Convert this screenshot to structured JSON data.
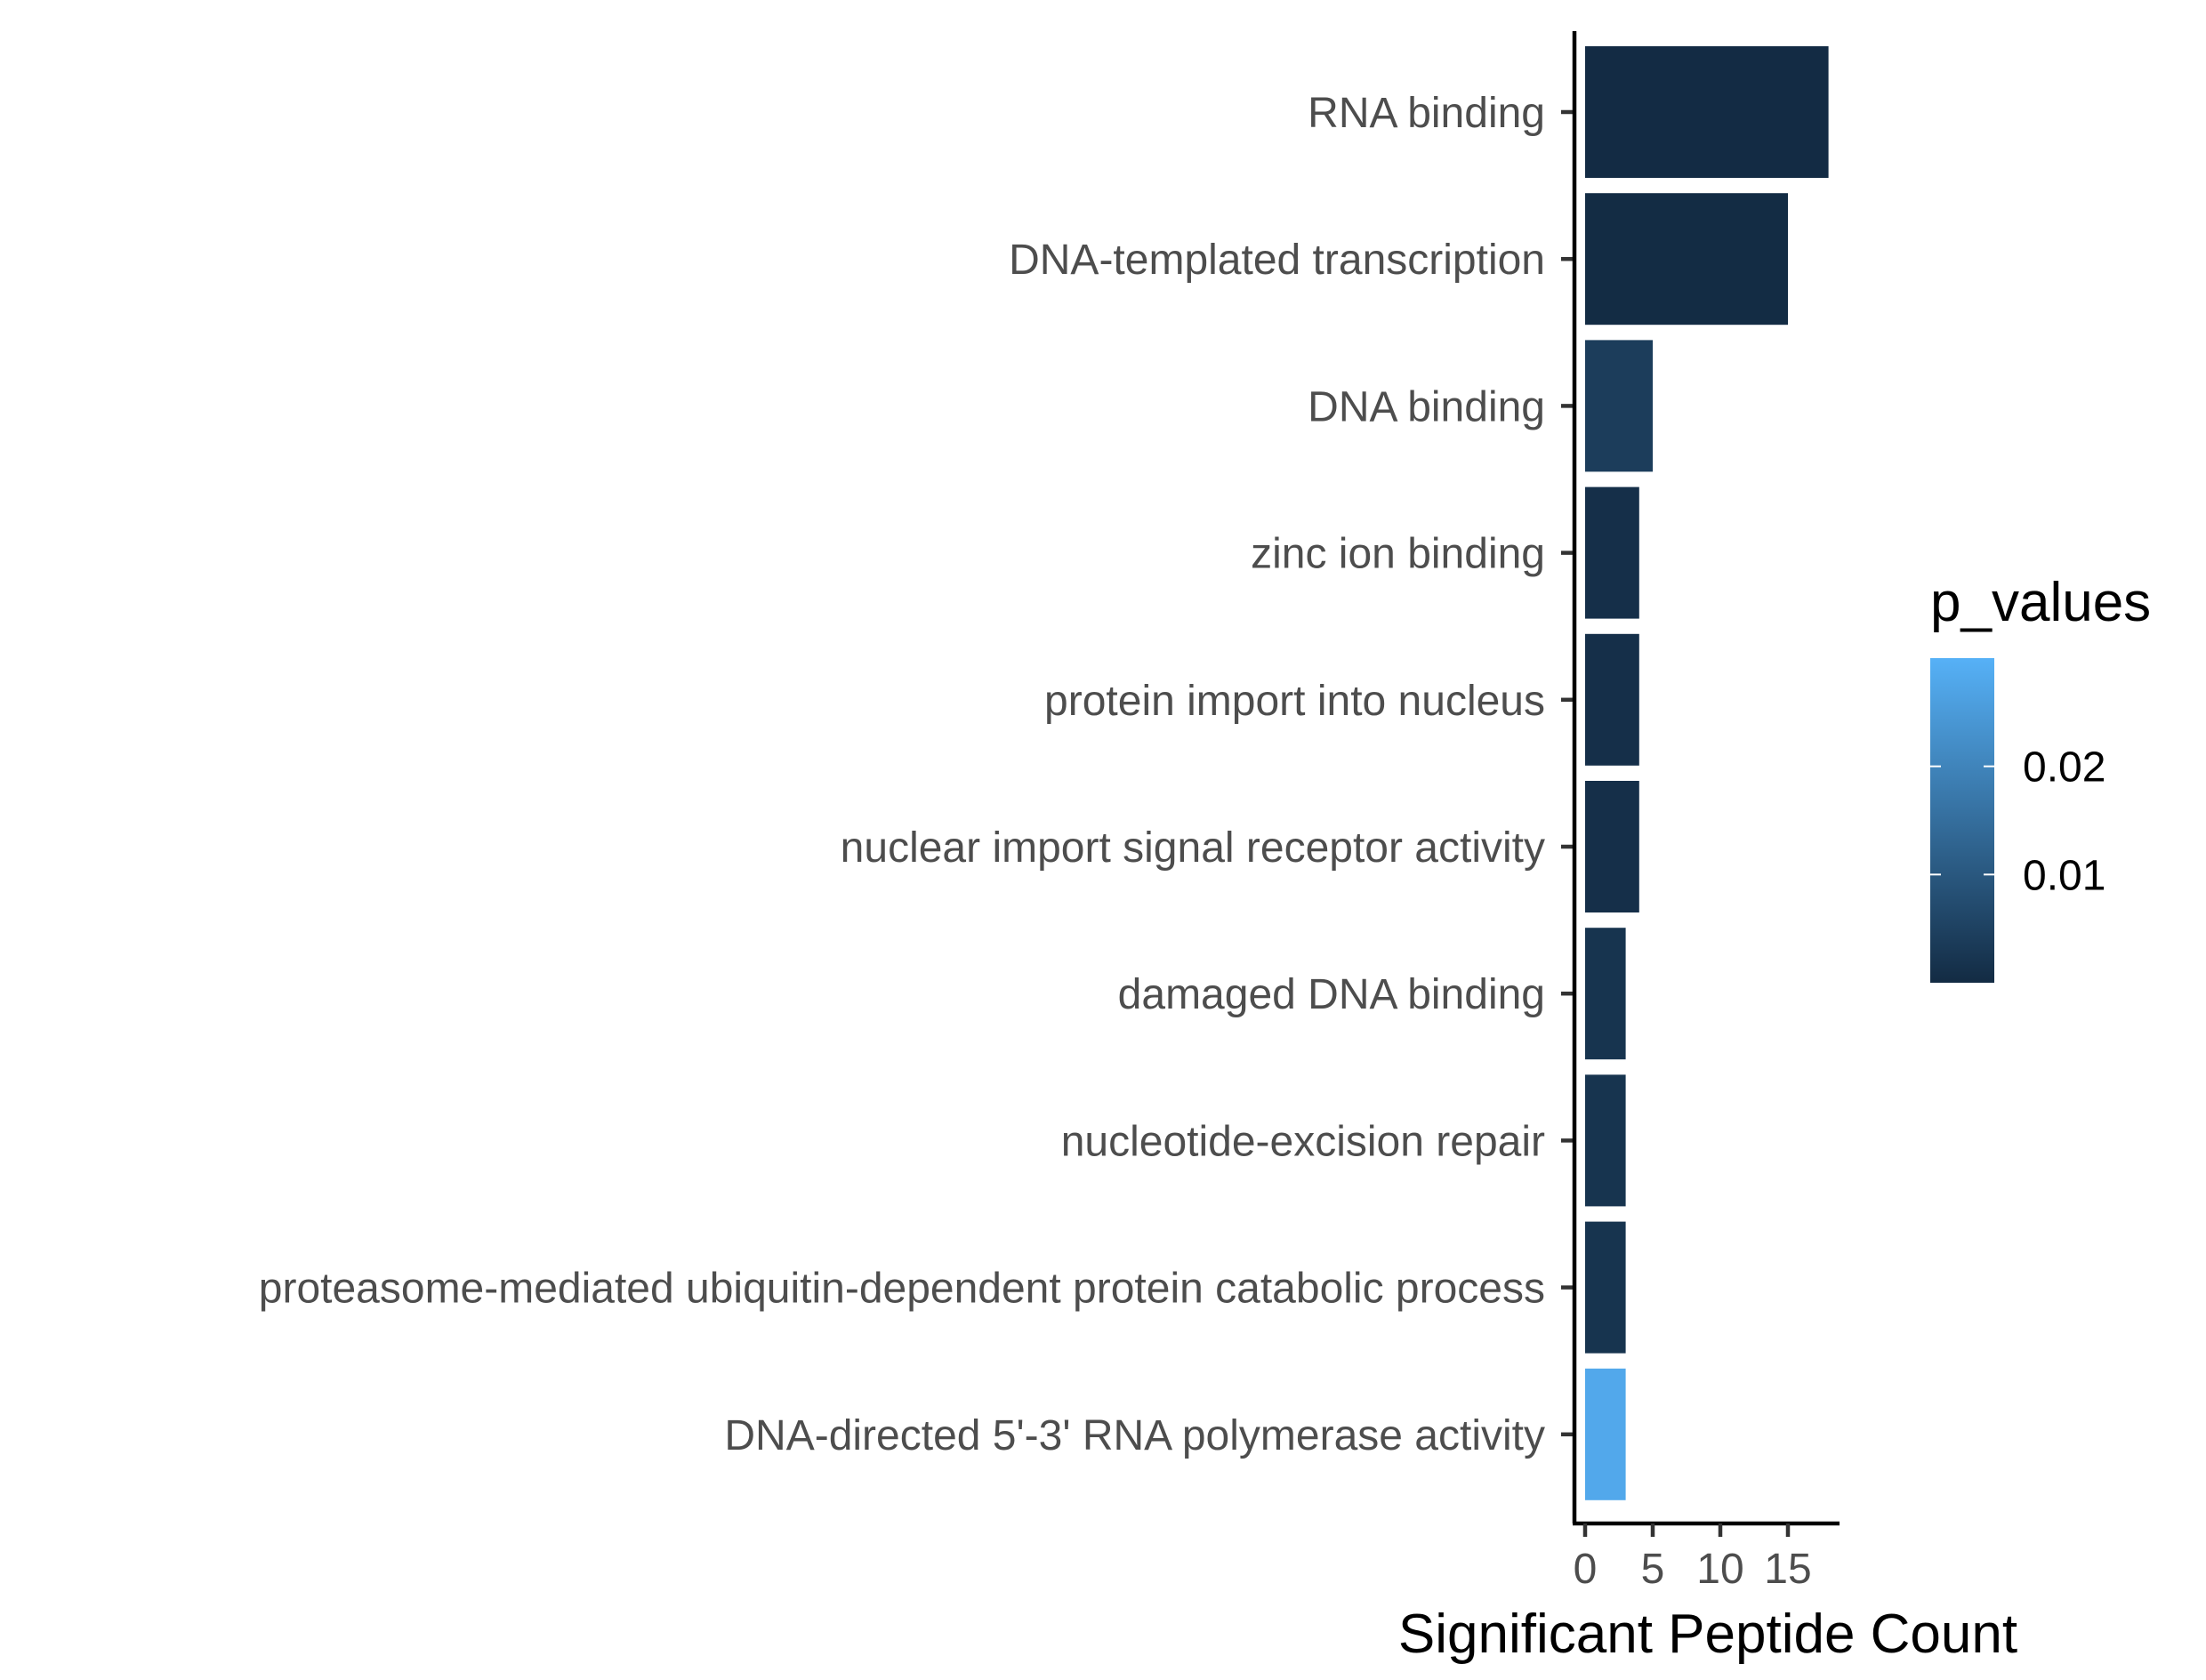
{
  "chart_data": {
    "type": "bar",
    "orientation": "horizontal",
    "categories": [
      "RNA binding",
      "DNA-templated transcription",
      "DNA binding",
      "zinc ion binding",
      "protein import into nucleus",
      "nuclear import signal receptor activity",
      "damaged DNA binding",
      "nucleotide-excision repair",
      "proteasome-mediated ubiquitin-dependent protein catabolic process",
      "DNA-directed 5'-3' RNA polymerase activity"
    ],
    "values": [
      18,
      15,
      5,
      4,
      4,
      4,
      3,
      3,
      3,
      3
    ],
    "p_values": [
      0.0001,
      0.0002,
      0.004,
      0.001,
      0.001,
      0.001,
      0.002,
      0.002,
      0.002,
      0.028
    ],
    "xlabel": "Significant Peptide Count",
    "ylabel": "",
    "xlim": [
      0,
      19
    ],
    "xticks": [
      0,
      5,
      10,
      15
    ],
    "grid": false,
    "legend": {
      "title": "p_values",
      "placement": "right",
      "type": "colorbar",
      "range": [
        0,
        0.03
      ],
      "ticks": [
        0.02,
        0.01
      ],
      "tick_labels": [
        "0.02",
        "0.01"
      ],
      "color_low": "#132b43",
      "color_high": "#56b1f7"
    }
  }
}
